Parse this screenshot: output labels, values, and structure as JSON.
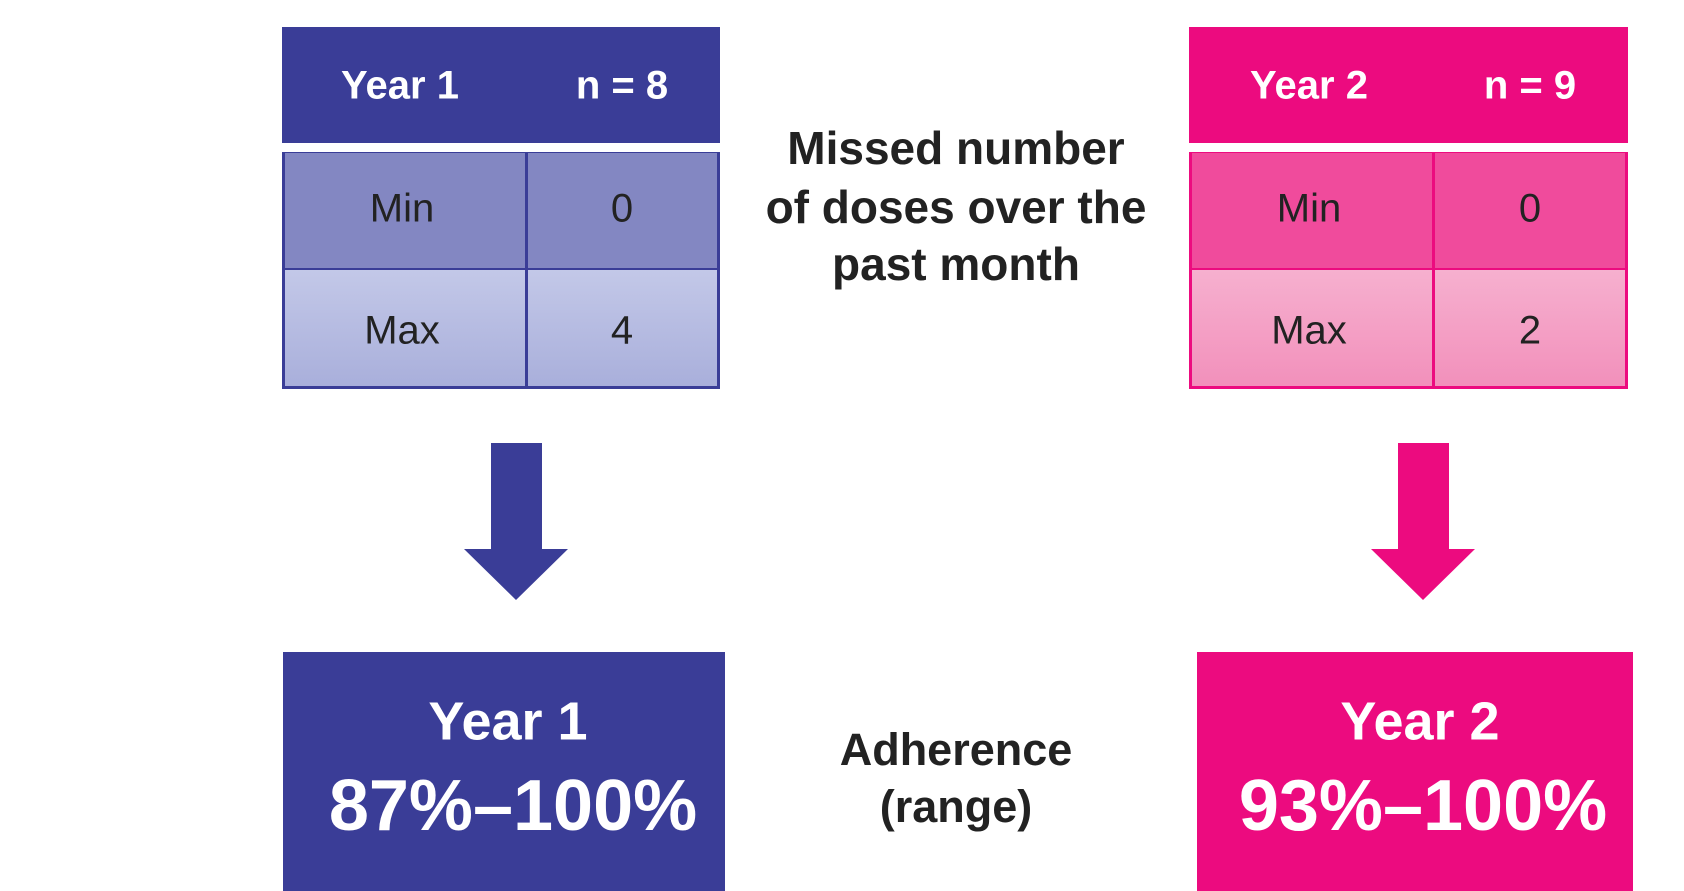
{
  "tables": [
    {
      "header": {
        "label": "Year 1",
        "n": "n = 8"
      },
      "rows": [
        [
          "Min",
          "0"
        ],
        [
          "Max",
          "4"
        ]
      ]
    },
    {
      "header": {
        "label": "Year 2",
        "n": "n = 9"
      },
      "rows": [
        [
          "Min",
          "0"
        ],
        [
          "Max",
          "2"
        ]
      ]
    }
  ],
  "center_label": [
    "Missed number",
    "of doses over the",
    "past month"
  ],
  "results": [
    {
      "label": "Year 1",
      "range": "87%–100%"
    },
    {
      "label": "Year 2",
      "range": "93%–100%"
    }
  ],
  "result_label": [
    "Adherence",
    "(range)"
  ]
}
